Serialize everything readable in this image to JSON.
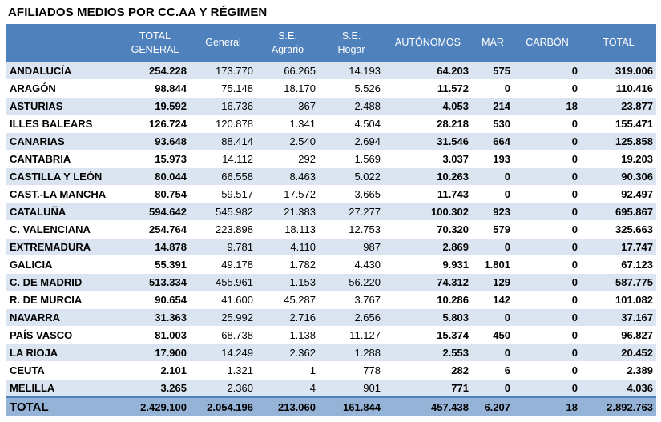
{
  "title": "AFILIADOS MEDIOS POR CC.AA Y RÉGIMEN",
  "columns": {
    "total_general": [
      "TOTAL",
      "GENERAL"
    ],
    "general": "General",
    "se_agrario": [
      "S.E.",
      "Agrario"
    ],
    "se_hogar": [
      "S.E.",
      "Hogar"
    ],
    "autonomos": "AUTÓNOMOS",
    "mar": "MAR",
    "carbon": "CARBÓN",
    "total": "TOTAL"
  },
  "rows": [
    {
      "region": "ANDALUCÍA",
      "total_general": "254.228",
      "general": "173.770",
      "se_agrario": "66.265",
      "se_hogar": "14.193",
      "autonomos": "64.203",
      "mar": "575",
      "carbon": "0",
      "total": "319.006"
    },
    {
      "region": "ARAGÓN",
      "total_general": "98.844",
      "general": "75.148",
      "se_agrario": "18.170",
      "se_hogar": "5.526",
      "autonomos": "11.572",
      "mar": "0",
      "carbon": "0",
      "total": "110.416"
    },
    {
      "region": "ASTURIAS",
      "total_general": "19.592",
      "general": "16.736",
      "se_agrario": "367",
      "se_hogar": "2.488",
      "autonomos": "4.053",
      "mar": "214",
      "carbon": "18",
      "total": "23.877"
    },
    {
      "region": "ILLES BALEARS",
      "total_general": "126.724",
      "general": "120.878",
      "se_agrario": "1.341",
      "se_hogar": "4.504",
      "autonomos": "28.218",
      "mar": "530",
      "carbon": "0",
      "total": "155.471"
    },
    {
      "region": "CANARIAS",
      "total_general": "93.648",
      "general": "88.414",
      "se_agrario": "2.540",
      "se_hogar": "2.694",
      "autonomos": "31.546",
      "mar": "664",
      "carbon": "0",
      "total": "125.858"
    },
    {
      "region": "CANTABRIA",
      "total_general": "15.973",
      "general": "14.112",
      "se_agrario": "292",
      "se_hogar": "1.569",
      "autonomos": "3.037",
      "mar": "193",
      "carbon": "0",
      "total": "19.203"
    },
    {
      "region": "CASTILLA Y LEÓN",
      "total_general": "80.044",
      "general": "66.558",
      "se_agrario": "8.463",
      "se_hogar": "5.022",
      "autonomos": "10.263",
      "mar": "0",
      "carbon": "0",
      "total": "90.306"
    },
    {
      "region": "CAST.-LA MANCHA",
      "total_general": "80.754",
      "general": "59.517",
      "se_agrario": "17.572",
      "se_hogar": "3.665",
      "autonomos": "11.743",
      "mar": "0",
      "carbon": "0",
      "total": "92.497"
    },
    {
      "region": "CATALUÑA",
      "total_general": "594.642",
      "general": "545.982",
      "se_agrario": "21.383",
      "se_hogar": "27.277",
      "autonomos": "100.302",
      "mar": "923",
      "carbon": "0",
      "total": "695.867"
    },
    {
      "region": "C. VALENCIANA",
      "total_general": "254.764",
      "general": "223.898",
      "se_agrario": "18.113",
      "se_hogar": "12.753",
      "autonomos": "70.320",
      "mar": "579",
      "carbon": "0",
      "total": "325.663"
    },
    {
      "region": "EXTREMADURA",
      "total_general": "14.878",
      "general": "9.781",
      "se_agrario": "4.110",
      "se_hogar": "987",
      "autonomos": "2.869",
      "mar": "0",
      "carbon": "0",
      "total": "17.747"
    },
    {
      "region": "GALICIA",
      "total_general": "55.391",
      "general": "49.178",
      "se_agrario": "1.782",
      "se_hogar": "4.430",
      "autonomos": "9.931",
      "mar": "1.801",
      "carbon": "0",
      "total": "67.123"
    },
    {
      "region": "C. DE MADRID",
      "total_general": "513.334",
      "general": "455.961",
      "se_agrario": "1.153",
      "se_hogar": "56.220",
      "autonomos": "74.312",
      "mar": "129",
      "carbon": "0",
      "total": "587.775"
    },
    {
      "region": "R. DE MURCIA",
      "total_general": "90.654",
      "general": "41.600",
      "se_agrario": "45.287",
      "se_hogar": "3.767",
      "autonomos": "10.286",
      "mar": "142",
      "carbon": "0",
      "total": "101.082"
    },
    {
      "region": "NAVARRA",
      "total_general": "31.363",
      "general": "25.992",
      "se_agrario": "2.716",
      "se_hogar": "2.656",
      "autonomos": "5.803",
      "mar": "0",
      "carbon": "0",
      "total": "37.167"
    },
    {
      "region": "PAÍS VASCO",
      "total_general": "81.003",
      "general": "68.738",
      "se_agrario": "1.138",
      "se_hogar": "11.127",
      "autonomos": "15.374",
      "mar": "450",
      "carbon": "0",
      "total": "96.827"
    },
    {
      "region": "LA RIOJA",
      "total_general": "17.900",
      "general": "14.249",
      "se_agrario": "2.362",
      "se_hogar": "1.288",
      "autonomos": "2.553",
      "mar": "0",
      "carbon": "0",
      "total": "20.452"
    },
    {
      "region": "CEUTA",
      "total_general": "2.101",
      "general": "1.321",
      "se_agrario": "1",
      "se_hogar": "778",
      "autonomos": "282",
      "mar": "6",
      "carbon": "0",
      "total": "2.389"
    },
    {
      "region": "MELILLA",
      "total_general": "3.265",
      "general": "2.360",
      "se_agrario": "4",
      "se_hogar": "901",
      "autonomos": "771",
      "mar": "0",
      "carbon": "0",
      "total": "4.036"
    }
  ],
  "totals": {
    "region": "TOTAL",
    "total_general": "2.429.100",
    "general": "2.054.196",
    "se_agrario": "213.060",
    "se_hogar": "161.844",
    "autonomos": "457.438",
    "mar": "6.207",
    "carbon": "18",
    "total": "2.892.763"
  },
  "colors": {
    "header": "#4f81bd",
    "band": "#dbe5f1",
    "footer": "#95b3d7"
  }
}
